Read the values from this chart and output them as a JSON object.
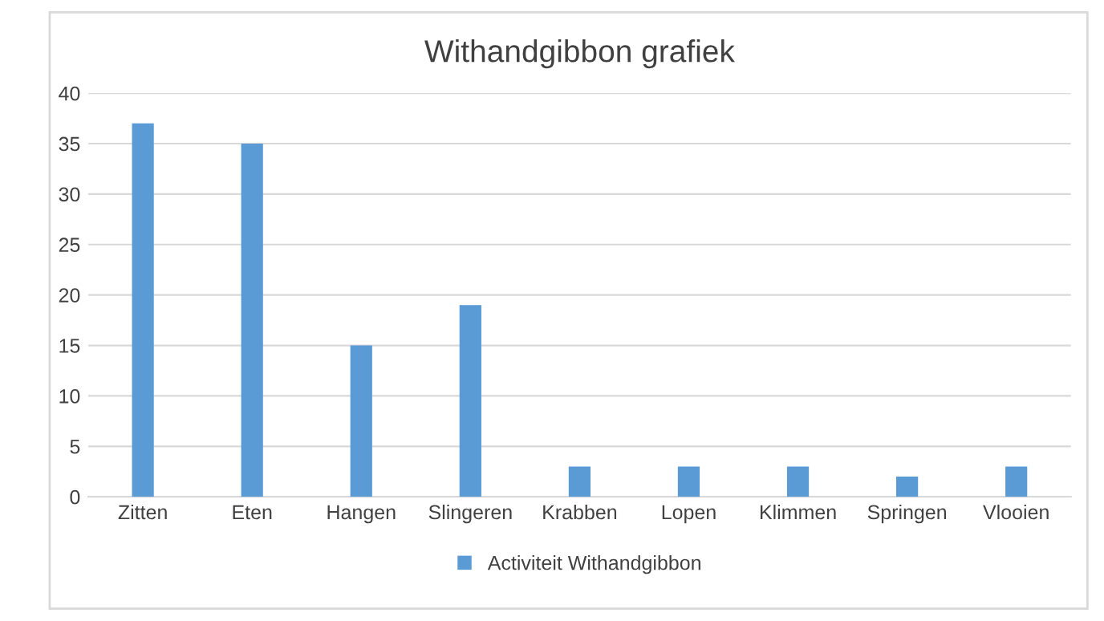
{
  "chart_data": {
    "type": "bar",
    "title": "Withandgibbon grafiek",
    "categories": [
      "Zitten",
      "Eten",
      "Hangen",
      "Slingeren",
      "Krabben",
      "Lopen",
      "Klimmen",
      "Springen",
      "Vlooien"
    ],
    "series": [
      {
        "name": "Activiteit Withandgibbon",
        "color": "#5b9bd5",
        "values": [
          37,
          35,
          15,
          19,
          3,
          3,
          3,
          2,
          3
        ]
      }
    ],
    "ylim": [
      0,
      40
    ],
    "yticks": [
      0,
      5,
      10,
      15,
      20,
      25,
      30,
      35,
      40
    ],
    "grid": "y",
    "legend": "bottom"
  }
}
